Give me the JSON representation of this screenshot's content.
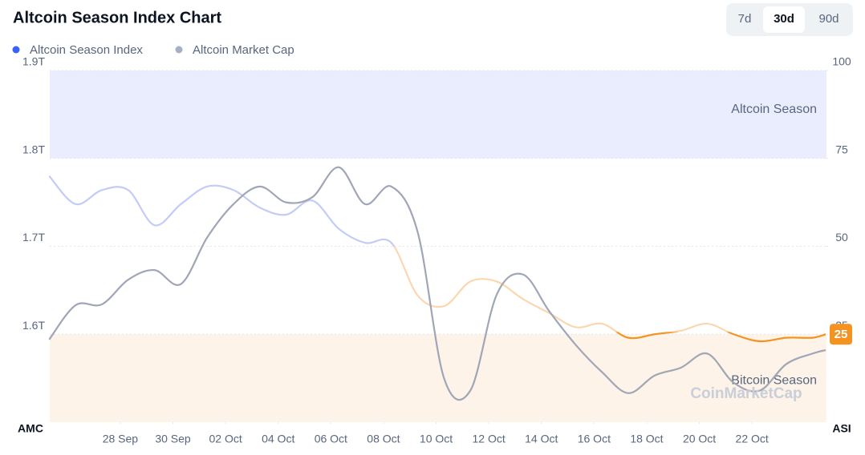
{
  "range_tabs": [
    "7d",
    "30d",
    "90d"
  ],
  "chart_data": {
    "type": "line",
    "title": "Altcoin Season Index Chart",
    "y_label": "AMC",
    "y2_label": "ASI",
    "watermark": "CoinMarketCap",
    "x": [
      -2.7,
      -1.7,
      -0.7,
      0.3,
      1.3,
      2.3,
      3.3,
      4.3,
      5.3,
      6.3,
      7.3,
      8.3,
      9.3,
      10.3,
      11.3,
      12.3,
      13.3,
      14.3,
      15.3,
      16.3,
      17.3,
      18.3,
      19.3,
      20.3,
      21.3,
      22.3,
      23.3,
      24.3,
      25.3,
      26.3,
      26.8
    ],
    "xlim": [
      -2.68,
      26.83
    ],
    "xticks": [
      {
        "value": 0,
        "label": "28 Sep"
      },
      {
        "value": 2,
        "label": "30 Sep"
      },
      {
        "value": 4,
        "label": "02 Oct"
      },
      {
        "value": 6,
        "label": "04 Oct"
      },
      {
        "value": 8,
        "label": "06 Oct"
      },
      {
        "value": 10,
        "label": "08 Oct"
      },
      {
        "value": 12,
        "label": "10 Oct"
      },
      {
        "value": 14,
        "label": "12 Oct"
      },
      {
        "value": 16,
        "label": "14 Oct"
      },
      {
        "value": 18,
        "label": "16 Oct"
      },
      {
        "value": 20,
        "label": "18 Oct"
      },
      {
        "value": 22,
        "label": "20 Oct"
      },
      {
        "value": 24,
        "label": "22 Oct"
      }
    ],
    "ylim": [
      1.5,
      1.9
    ],
    "yticks": [
      {
        "value": 1.6,
        "label": "1.6T"
      },
      {
        "value": 1.7,
        "label": "1.7T"
      },
      {
        "value": 1.8,
        "label": "1.8T"
      },
      {
        "value": 1.9,
        "label": "1.9T"
      }
    ],
    "y2lim": [
      0,
      100
    ],
    "y2ticks": [
      25,
      50,
      75,
      100
    ],
    "grid": true,
    "zones": [
      {
        "label": "Altcoin Season",
        "range": [
          75,
          100
        ],
        "color": "#eaedfd"
      },
      {
        "label": "Bitcoin Season",
        "range": [
          0,
          25
        ],
        "color": "#fdf3e8"
      }
    ],
    "series": [
      {
        "name": "Altcoin Season Index",
        "color": "#3861fb",
        "axis": "y2",
        "line_colors": {
          "high": "#c3cbf7",
          "mid": "#fbd7b0",
          "low": "#f39322"
        },
        "values": [
          70,
          62,
          66,
          66,
          56,
          62,
          67,
          66,
          61,
          59,
          63,
          55,
          51,
          51,
          36,
          33,
          40,
          40,
          35,
          31,
          27,
          28,
          24,
          25,
          26,
          28,
          25,
          23,
          24,
          24,
          25
        ]
      },
      {
        "name": "Altcoin Market Cap",
        "color": "#a6b0c3",
        "line_color": "#a0a6b6",
        "values": [
          1.594,
          1.633,
          1.634,
          1.662,
          1.673,
          1.657,
          1.71,
          1.748,
          1.768,
          1.75,
          1.756,
          1.79,
          1.748,
          1.768,
          1.716,
          1.55,
          1.536,
          1.645,
          1.668,
          1.626,
          1.588,
          1.557,
          1.533,
          1.553,
          1.562,
          1.578,
          1.545,
          1.536,
          1.566,
          1.578,
          1.582
        ]
      }
    ]
  }
}
